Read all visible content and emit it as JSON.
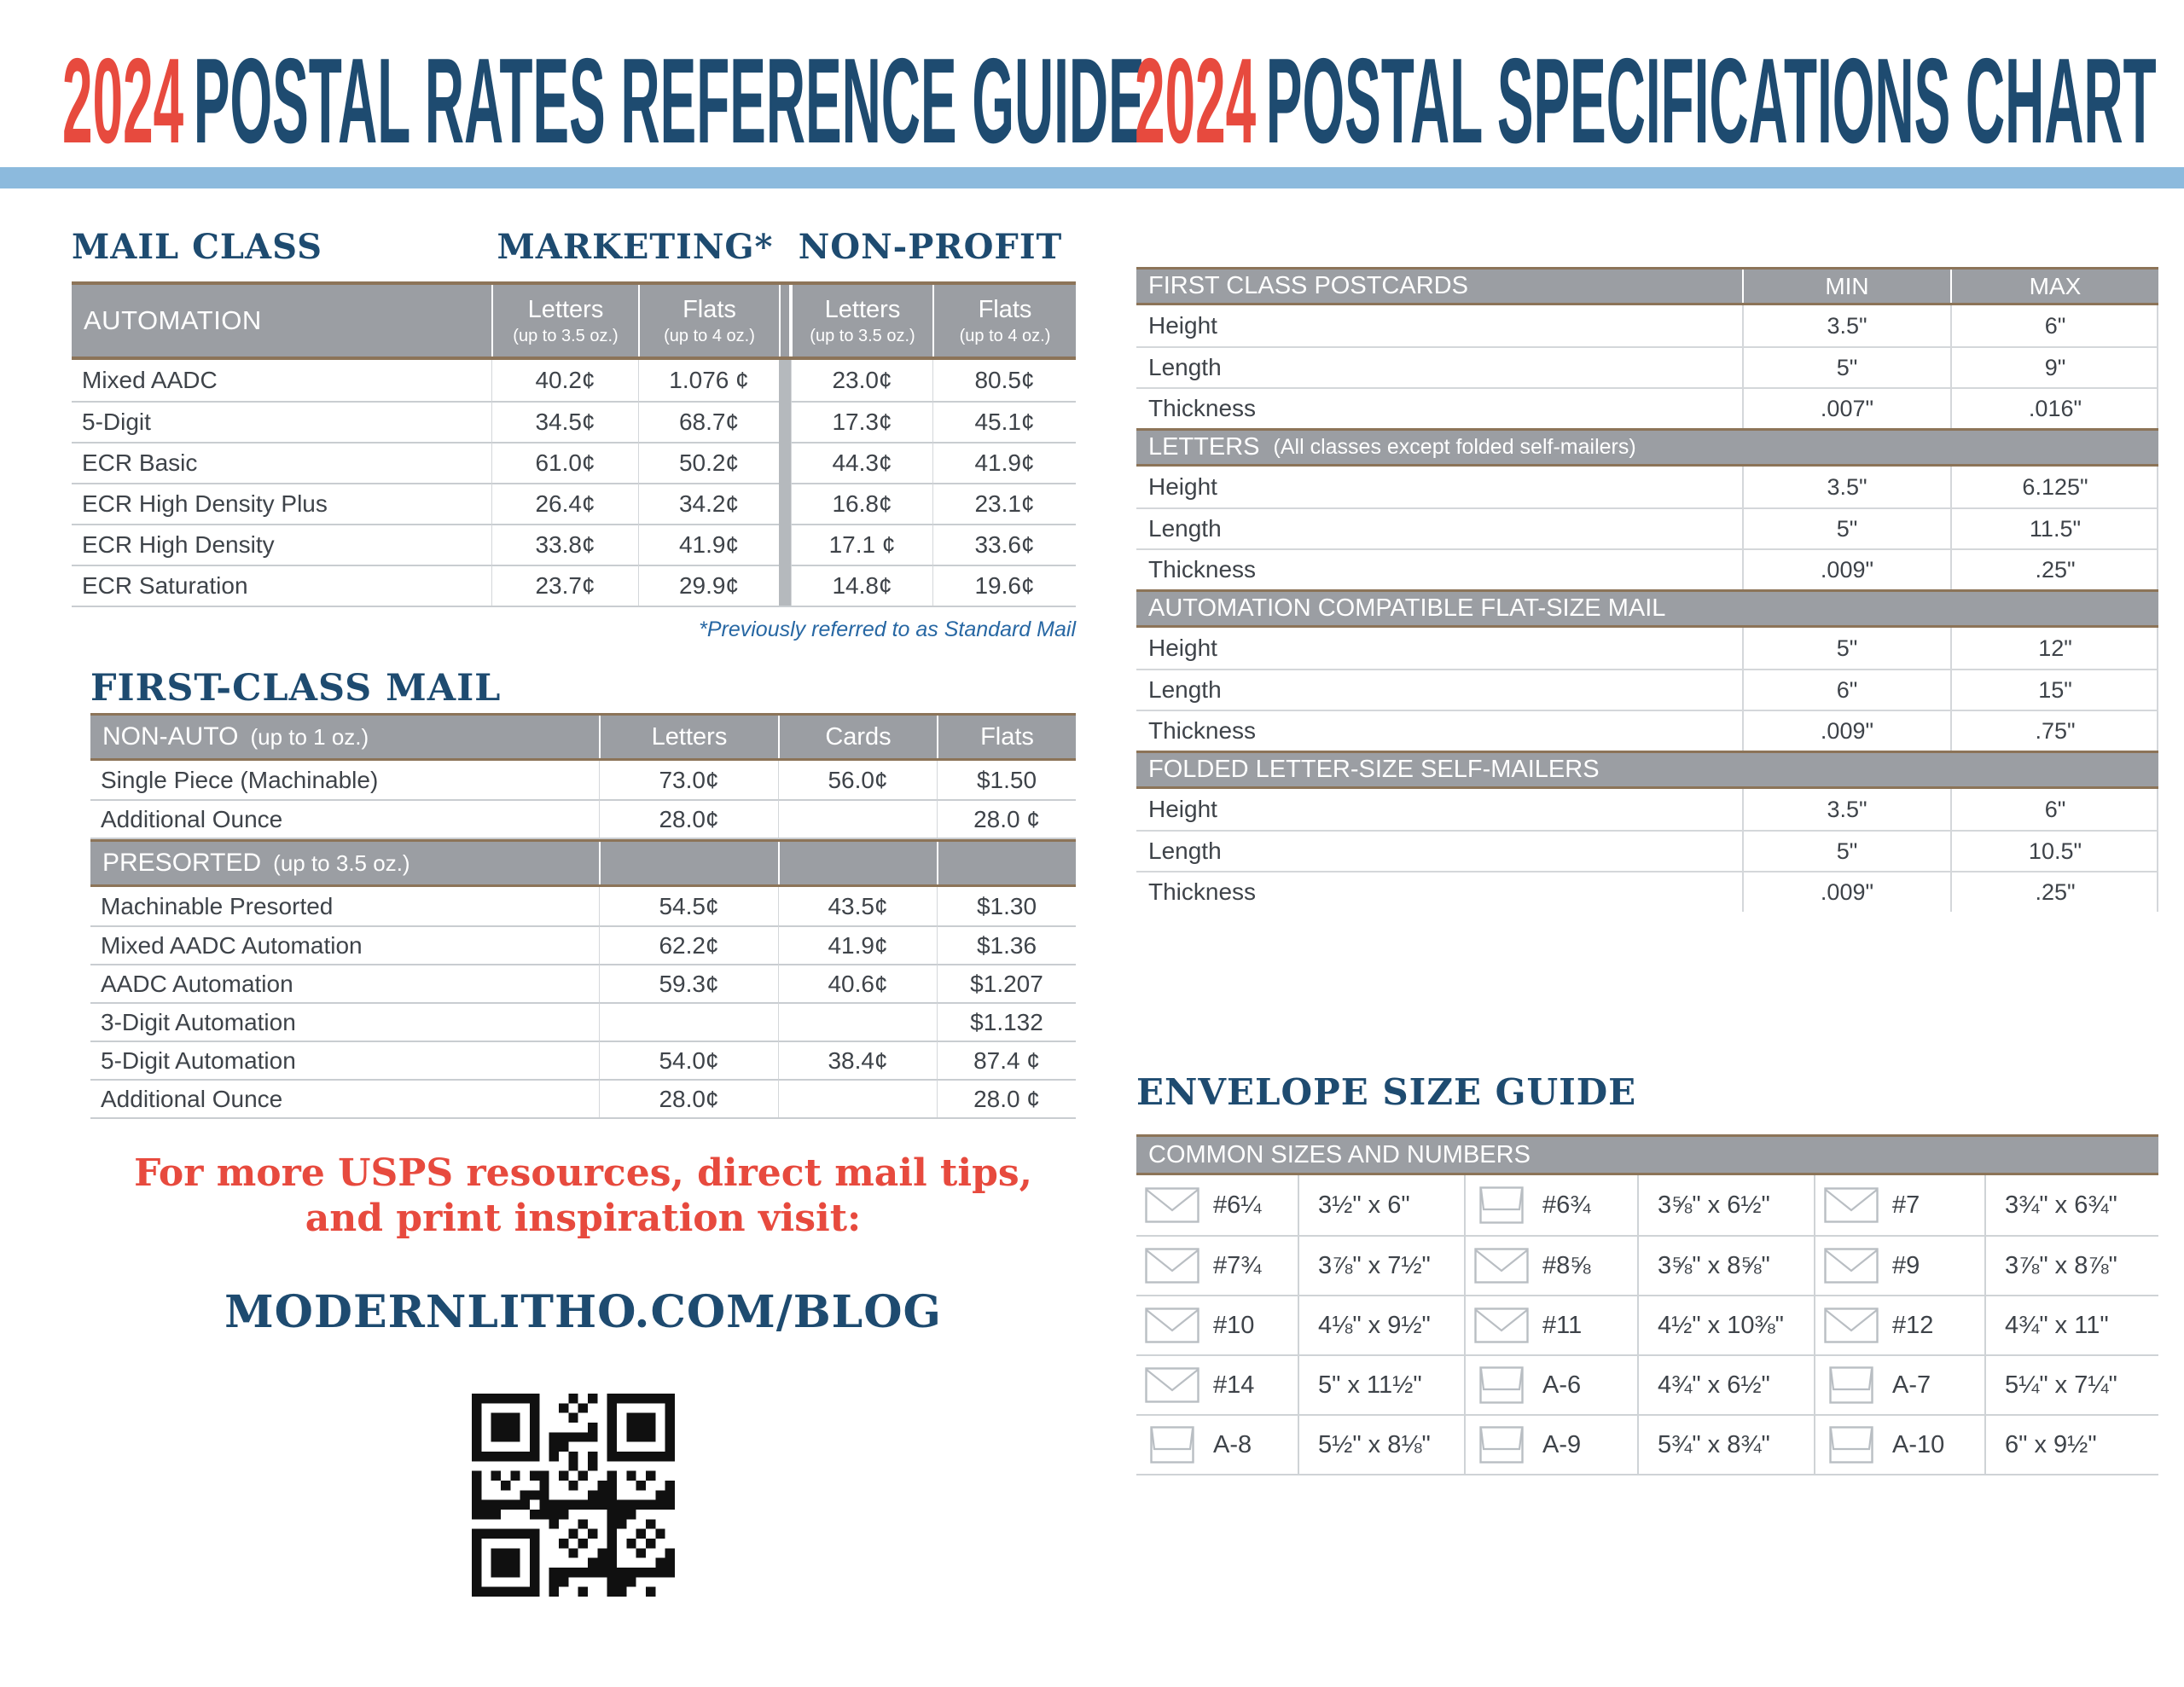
{
  "titles": {
    "left": {
      "year": "2024",
      "text": "POSTAL RATES REFERENCE GUIDE"
    },
    "right": {
      "year": "2024",
      "text": "POSTAL SPECIFICATIONS CHART"
    }
  },
  "colors": {
    "navy": "#1e4b70",
    "red": "#e74a3e",
    "bar_blue": "#8cbadd",
    "header_gray": "#9b9ea3",
    "band_brown": "#8c7458",
    "divider_gray": "#b5b9bd",
    "footnote_blue": "#2767a3",
    "text": "#3e4349"
  },
  "automation": {
    "heading": "MAIL CLASS",
    "group_headers": [
      "MARKETING*",
      "NON-PROFIT"
    ],
    "corner_label": "AUTOMATION",
    "columns": [
      {
        "label": "Letters",
        "sub": "(up to 3.5 oz.)"
      },
      {
        "label": "Flats",
        "sub": "(up to 4 oz.)"
      },
      {
        "label": "Letters",
        "sub": "(up to 3.5 oz.)"
      },
      {
        "label": "Flats",
        "sub": "(up to 4 oz.)"
      }
    ],
    "rows": [
      {
        "label": "Mixed AADC",
        "values": [
          "40.2¢",
          "1.076 ¢",
          "23.0¢",
          "80.5¢"
        ]
      },
      {
        "label": "5-Digit",
        "values": [
          "34.5¢",
          "68.7¢",
          "17.3¢",
          "45.1¢"
        ]
      },
      {
        "label": "ECR Basic",
        "values": [
          "61.0¢",
          "50.2¢",
          "44.3¢",
          "41.9¢"
        ]
      },
      {
        "label": "ECR High Density Plus",
        "values": [
          "26.4¢",
          "34.2¢",
          "16.8¢",
          "23.1¢"
        ]
      },
      {
        "label": "ECR High Density",
        "values": [
          "33.8¢",
          "41.9¢",
          "17.1 ¢",
          "33.6¢"
        ]
      },
      {
        "label": "ECR Saturation",
        "values": [
          "23.7¢",
          "29.9¢",
          "14.8¢",
          "19.6¢"
        ]
      }
    ],
    "footnote": "*Previously referred to as Standard Mail"
  },
  "first_class": {
    "heading": "FIRST-CLASS MAIL",
    "columns": [
      "Letters",
      "Cards",
      "Flats"
    ],
    "sections": [
      {
        "header": "NON-AUTO",
        "header_sub": "(up to 1 oz.)",
        "rows": [
          {
            "label": "Single Piece (Machinable)",
            "values": [
              "73.0¢",
              "56.0¢",
              "$1.50"
            ]
          },
          {
            "label": "Additional Ounce",
            "values": [
              "28.0¢",
              "",
              "28.0 ¢"
            ]
          }
        ]
      },
      {
        "header": "PRESORTED",
        "header_sub": "(up to 3.5 oz.)",
        "rows": [
          {
            "label": "Machinable Presorted",
            "values": [
              "54.5¢",
              "43.5¢",
              "$1.30"
            ]
          },
          {
            "label": "Mixed AADC Automation",
            "values": [
              "62.2¢",
              "41.9¢",
              "$1.36"
            ]
          },
          {
            "label": "AADC Automation",
            "values": [
              "59.3¢",
              "40.6¢",
              "$1.207"
            ]
          },
          {
            "label": "3-Digit Automation",
            "values": [
              "",
              "",
              "$1.132"
            ]
          },
          {
            "label": "5-Digit Automation",
            "values": [
              "54.0¢",
              "38.4¢",
              "87.4 ¢"
            ]
          },
          {
            "label": "Additional Ounce",
            "values": [
              "28.0¢",
              "",
              "28.0 ¢"
            ]
          }
        ]
      }
    ]
  },
  "promo": {
    "line1": "For more USPS resources, direct mail tips,",
    "line2": "and print inspiration visit:",
    "url": "MODERNLITHO.COM/BLOG"
  },
  "specifications": {
    "min_label": "MIN",
    "max_label": "MAX",
    "sections": [
      {
        "header": "FIRST CLASS POSTCARDS",
        "header_sub": "",
        "rows": [
          [
            "Height",
            "3.5\"",
            "6\""
          ],
          [
            "Length",
            "5\"",
            "9\""
          ],
          [
            "Thickness",
            ".007\"",
            ".016\""
          ]
        ]
      },
      {
        "header": "LETTERS",
        "header_sub": "(All classes except folded self-mailers)",
        "rows": [
          [
            "Height",
            "3.5\"",
            "6.125\""
          ],
          [
            "Length",
            "5\"",
            "11.5\""
          ],
          [
            "Thickness",
            ".009\"",
            ".25\""
          ]
        ]
      },
      {
        "header": "AUTOMATION COMPATIBLE FLAT-SIZE MAIL",
        "header_sub": "",
        "rows": [
          [
            "Height",
            "5\"",
            "12\""
          ],
          [
            "Length",
            "6\"",
            "15\""
          ],
          [
            "Thickness",
            ".009\"",
            ".75\""
          ]
        ]
      },
      {
        "header": "FOLDED LETTER-SIZE SELF-MAILERS",
        "header_sub": "",
        "rows": [
          [
            "Height",
            "3.5\"",
            "6\""
          ],
          [
            "Length",
            "5\"",
            "10.5\""
          ],
          [
            "Thickness",
            ".009\"",
            ".25\""
          ]
        ]
      }
    ]
  },
  "envelope_guide": {
    "heading": "ENVELOPE SIZE GUIDE",
    "table_header": "COMMON SIZES AND NUMBERS",
    "rows": [
      [
        {
          "icon": "pointed",
          "number": "#6¼",
          "size": "3½\" x 6\""
        },
        {
          "icon": "square",
          "number": "#6¾",
          "size": "3⅝\" x 6½\""
        },
        {
          "icon": "pointed",
          "number": "#7",
          "size": "3¾\" x 6¾\""
        }
      ],
      [
        {
          "icon": "pointed",
          "number": "#7¾",
          "size": "3⅞\" x 7½\""
        },
        {
          "icon": "pointed",
          "number": "#8⅝",
          "size": "3⅝\" x 8⅝\""
        },
        {
          "icon": "pointed",
          "number": "#9",
          "size": "3⅞\" x 8⅞\""
        }
      ],
      [
        {
          "icon": "pointed",
          "number": "#10",
          "size": "4⅛\" x 9½\""
        },
        {
          "icon": "pointed",
          "number": "#11",
          "size": "4½\" x 10⅜\""
        },
        {
          "icon": "pointed",
          "number": "#12",
          "size": "4¾\" x 11\""
        }
      ],
      [
        {
          "icon": "pointed",
          "number": "#14",
          "size": "5\" x 11½\""
        },
        {
          "icon": "square",
          "number": "A-6",
          "size": "4¾\" x 6½\""
        },
        {
          "icon": "square",
          "number": "A-7",
          "size": "5¼\" x 7¼\""
        }
      ],
      [
        {
          "icon": "square",
          "number": "A-8",
          "size": "5½\" x 8⅛\""
        },
        {
          "icon": "square",
          "number": "A-9",
          "size": "5¾\" x 8¾\""
        },
        {
          "icon": "square",
          "number": "A-10",
          "size": "6\" x 9½\""
        }
      ]
    ]
  }
}
